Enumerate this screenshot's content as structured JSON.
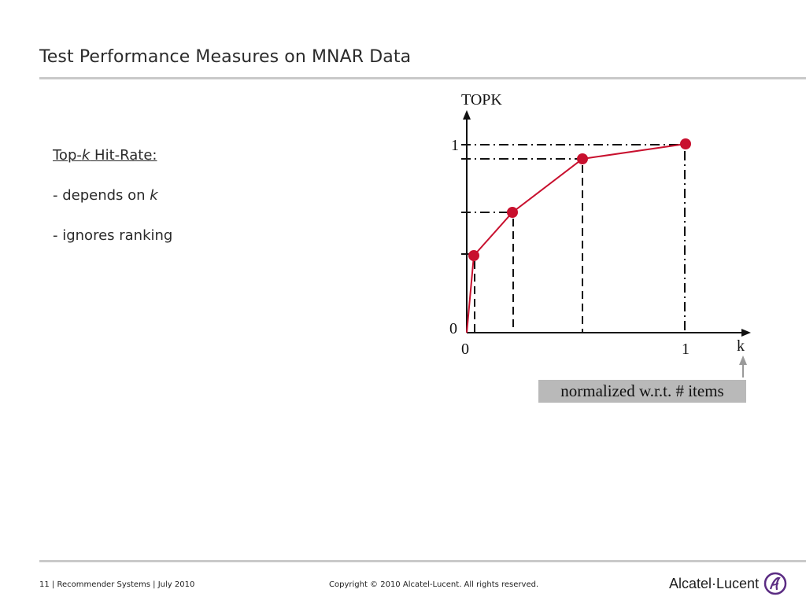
{
  "slide": {
    "title": "Test Performance Measures on MNAR Data"
  },
  "bullets": {
    "heading_prefix": "Top-",
    "heading_k": "k",
    "heading_suffix": " Hit-Rate:",
    "item1_prefix": "- depends on ",
    "item1_k": "k",
    "item2": "- ignores ranking"
  },
  "diagram": {
    "y_axis_title": "TOPK",
    "x_axis_title": "k",
    "y_tick_top": "1",
    "y_tick_origin": "0",
    "x_tick_origin": "0",
    "x_tick_right": "1",
    "curve_color": "#c8102e",
    "note": "normalized w.r.t. # items"
  },
  "footer": {
    "left": "11 | Recommender Systems | July 2010",
    "center": "Copyright © 2010 Alcatel-Lucent. All rights reserved.",
    "logo_text": "Alcatel·Lucent",
    "logo_icon": "alcatel-lucent-logo-icon"
  }
}
